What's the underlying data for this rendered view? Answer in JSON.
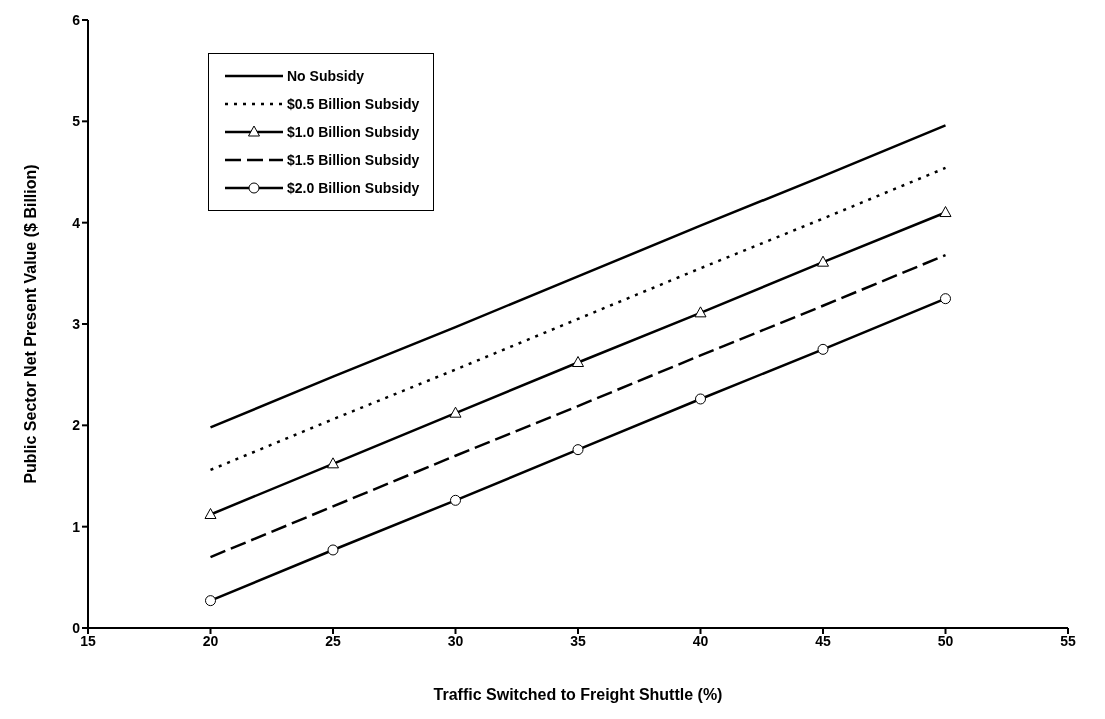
{
  "chart_data": {
    "type": "line",
    "xlabel": "Traffic Switched to Freight Shuttle (%)",
    "ylabel": "Public Sector Net Present Value ($ Billion)",
    "x": [
      20,
      25,
      30,
      35,
      40,
      45,
      50
    ],
    "series": [
      {
        "name": "No Subsidy",
        "color": "#000000",
        "line_style": "solid",
        "marker": "none",
        "values": [
          1.98,
          2.48,
          2.97,
          3.47,
          3.97,
          4.46,
          4.96
        ]
      },
      {
        "name": "$0.5 Billion Subsidy",
        "color": "#000000",
        "line_style": "dotted",
        "marker": "none",
        "values": [
          1.56,
          2.06,
          2.55,
          3.05,
          3.55,
          4.04,
          4.54
        ]
      },
      {
        "name": "$1.0 Billion Subsidy",
        "color": "#000000",
        "line_style": "solid",
        "marker": "triangle",
        "values": [
          1.12,
          1.62,
          2.12,
          2.62,
          3.11,
          3.61,
          4.1
        ]
      },
      {
        "name": "$1.5 Billion Subsidy",
        "color": "#000000",
        "line_style": "dashed",
        "marker": "none",
        "values": [
          0.7,
          1.2,
          1.7,
          2.19,
          2.69,
          3.18,
          3.68
        ]
      },
      {
        "name": "$2.0 Billion Subsidy",
        "color": "#000000",
        "line_style": "solid",
        "marker": "circle",
        "values": [
          0.27,
          0.77,
          1.26,
          1.76,
          2.26,
          2.75,
          3.25
        ]
      }
    ],
    "xlim": [
      15,
      55
    ],
    "xticks": [
      15,
      20,
      25,
      30,
      35,
      40,
      45,
      50,
      55
    ],
    "ylim": [
      0,
      6
    ],
    "yticks": [
      0,
      1,
      2,
      3,
      4,
      5,
      6
    ],
    "grid": false,
    "legend": "top left"
  }
}
